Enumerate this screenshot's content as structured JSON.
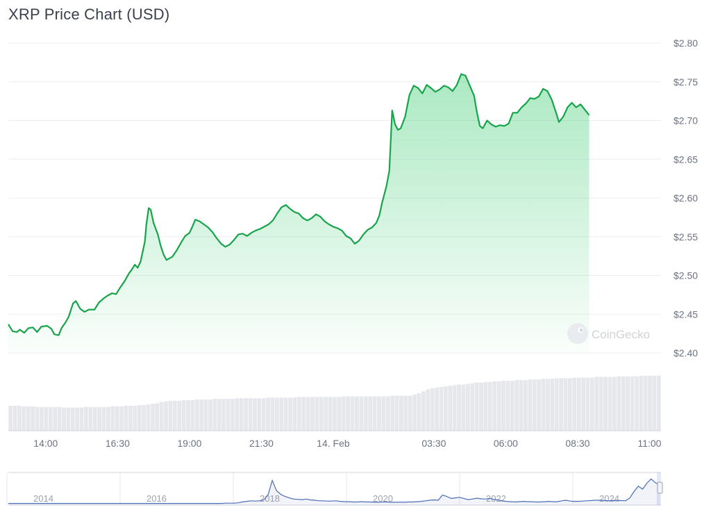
{
  "chart_data": {
    "type": "line",
    "title": "XRP Price Chart (USD)",
    "watermark": "CoinGecko",
    "colors": {
      "line": "#16a34a",
      "area_top": "#22c55e",
      "grid": "#eceef1",
      "volume": "#e5e7eb",
      "navigator_line": "#4b6cb7",
      "axis_text": "#6b7280"
    },
    "ylim": [
      2.38,
      2.82
    ],
    "y_ticks": [
      {
        "value": 2.8,
        "label": "$2.80"
      },
      {
        "value": 2.75,
        "label": "$2.75"
      },
      {
        "value": 2.7,
        "label": "$2.70"
      },
      {
        "value": 2.65,
        "label": "$2.65"
      },
      {
        "value": 2.6,
        "label": "$2.60"
      },
      {
        "value": 2.55,
        "label": "$2.55"
      },
      {
        "value": 2.5,
        "label": "$2.50"
      },
      {
        "value": 2.45,
        "label": "$2.45"
      },
      {
        "value": 2.4,
        "label": "$2.40"
      }
    ],
    "x_ticks": [
      {
        "label": "14:00",
        "pos": 2.0
      },
      {
        "label": "16:30",
        "pos": 4.5
      },
      {
        "label": "19:00",
        "pos": 7.0
      },
      {
        "label": "21:30",
        "pos": 9.5
      },
      {
        "label": "14. Feb",
        "pos": 12.0
      },
      {
        "label": "03:30",
        "pos": 15.5
      },
      {
        "label": "06:00",
        "pos": 18.0
      },
      {
        "label": "08:30",
        "pos": 20.5
      },
      {
        "label": "11:00",
        "pos": 23.0
      }
    ],
    "x_range": [
      0.7,
      23.4
    ],
    "series": [
      {
        "values": [
          [
            0.7,
            2.437
          ],
          [
            0.85,
            2.428
          ],
          [
            1.0,
            2.427
          ],
          [
            1.1,
            2.43
          ],
          [
            1.25,
            2.426
          ],
          [
            1.4,
            2.432
          ],
          [
            1.55,
            2.433
          ],
          [
            1.7,
            2.427
          ],
          [
            1.85,
            2.434
          ],
          [
            2.05,
            2.435
          ],
          [
            2.2,
            2.431
          ],
          [
            2.3,
            2.424
          ],
          [
            2.45,
            2.423
          ],
          [
            2.55,
            2.432
          ],
          [
            2.7,
            2.44
          ],
          [
            2.8,
            2.447
          ],
          [
            2.95,
            2.464
          ],
          [
            3.05,
            2.467
          ],
          [
            3.2,
            2.457
          ],
          [
            3.35,
            2.453
          ],
          [
            3.5,
            2.456
          ],
          [
            3.7,
            2.456
          ],
          [
            3.85,
            2.465
          ],
          [
            4.0,
            2.47
          ],
          [
            4.15,
            2.474
          ],
          [
            4.3,
            2.477
          ],
          [
            4.45,
            2.476
          ],
          [
            4.6,
            2.485
          ],
          [
            4.75,
            2.493
          ],
          [
            4.9,
            2.503
          ],
          [
            5.0,
            2.508
          ],
          [
            5.1,
            2.514
          ],
          [
            5.2,
            2.51
          ],
          [
            5.3,
            2.518
          ],
          [
            5.45,
            2.544
          ],
          [
            5.5,
            2.566
          ],
          [
            5.58,
            2.587
          ],
          [
            5.65,
            2.585
          ],
          [
            5.75,
            2.568
          ],
          [
            5.9,
            2.553
          ],
          [
            6.0,
            2.538
          ],
          [
            6.1,
            2.527
          ],
          [
            6.2,
            2.52
          ],
          [
            6.4,
            2.524
          ],
          [
            6.55,
            2.532
          ],
          [
            6.7,
            2.542
          ],
          [
            6.85,
            2.551
          ],
          [
            7.0,
            2.555
          ],
          [
            7.1,
            2.563
          ],
          [
            7.2,
            2.572
          ],
          [
            7.35,
            2.57
          ],
          [
            7.5,
            2.566
          ],
          [
            7.65,
            2.562
          ],
          [
            7.8,
            2.556
          ],
          [
            7.95,
            2.548
          ],
          [
            8.1,
            2.541
          ],
          [
            8.25,
            2.537
          ],
          [
            8.4,
            2.54
          ],
          [
            8.55,
            2.546
          ],
          [
            8.7,
            2.553
          ],
          [
            8.85,
            2.554
          ],
          [
            9.0,
            2.551
          ],
          [
            9.15,
            2.555
          ],
          [
            9.3,
            2.558
          ],
          [
            9.45,
            2.56
          ],
          [
            9.6,
            2.563
          ],
          [
            9.75,
            2.566
          ],
          [
            9.9,
            2.571
          ],
          [
            10.05,
            2.58
          ],
          [
            10.2,
            2.588
          ],
          [
            10.35,
            2.591
          ],
          [
            10.5,
            2.586
          ],
          [
            10.65,
            2.582
          ],
          [
            10.8,
            2.58
          ],
          [
            10.95,
            2.574
          ],
          [
            11.1,
            2.571
          ],
          [
            11.25,
            2.574
          ],
          [
            11.4,
            2.579
          ],
          [
            11.55,
            2.576
          ],
          [
            11.7,
            2.57
          ],
          [
            11.85,
            2.566
          ],
          [
            12.0,
            2.563
          ],
          [
            12.15,
            2.561
          ],
          [
            12.3,
            2.558
          ],
          [
            12.45,
            2.551
          ],
          [
            12.6,
            2.548
          ],
          [
            12.75,
            2.541
          ],
          [
            12.9,
            2.545
          ],
          [
            13.05,
            2.553
          ],
          [
            13.2,
            2.559
          ],
          [
            13.35,
            2.562
          ],
          [
            13.5,
            2.568
          ],
          [
            13.6,
            2.577
          ],
          [
            13.7,
            2.594
          ],
          [
            13.85,
            2.615
          ],
          [
            13.95,
            2.635
          ],
          [
            14.05,
            2.713
          ],
          [
            14.15,
            2.695
          ],
          [
            14.25,
            2.688
          ],
          [
            14.35,
            2.69
          ],
          [
            14.5,
            2.705
          ],
          [
            14.65,
            2.733
          ],
          [
            14.8,
            2.745
          ],
          [
            14.95,
            2.742
          ],
          [
            15.1,
            2.735
          ],
          [
            15.25,
            2.746
          ],
          [
            15.4,
            2.742
          ],
          [
            15.55,
            2.737
          ],
          [
            15.7,
            2.74
          ],
          [
            15.85,
            2.745
          ],
          [
            16.0,
            2.743
          ],
          [
            16.15,
            2.738
          ],
          [
            16.3,
            2.746
          ],
          [
            16.45,
            2.76
          ],
          [
            16.6,
            2.758
          ],
          [
            16.75,
            2.745
          ],
          [
            16.9,
            2.732
          ],
          [
            17.0,
            2.71
          ],
          [
            17.1,
            2.693
          ],
          [
            17.2,
            2.69
          ],
          [
            17.35,
            2.7
          ],
          [
            17.5,
            2.695
          ],
          [
            17.65,
            2.692
          ],
          [
            17.8,
            2.694
          ],
          [
            17.95,
            2.693
          ],
          [
            18.1,
            2.696
          ],
          [
            18.25,
            2.71
          ],
          [
            18.4,
            2.71
          ],
          [
            18.55,
            2.717
          ],
          [
            18.7,
            2.722
          ],
          [
            18.85,
            2.729
          ],
          [
            19.0,
            2.728
          ],
          [
            19.15,
            2.731
          ],
          [
            19.3,
            2.741
          ],
          [
            19.45,
            2.738
          ],
          [
            19.6,
            2.727
          ],
          [
            19.75,
            2.71
          ],
          [
            19.85,
            2.698
          ],
          [
            20.0,
            2.705
          ],
          [
            20.15,
            2.717
          ],
          [
            20.3,
            2.723
          ],
          [
            20.45,
            2.717
          ],
          [
            20.6,
            2.721
          ],
          [
            20.75,
            2.714
          ],
          [
            20.9,
            2.707
          ]
        ]
      }
    ],
    "volume": {
      "note_scale_max": 1.0,
      "values": [
        0.4,
        0.4,
        0.4,
        0.39,
        0.39,
        0.39,
        0.38,
        0.38,
        0.38,
        0.38,
        0.38,
        0.38,
        0.37,
        0.37,
        0.37,
        0.37,
        0.37,
        0.38,
        0.38,
        0.38,
        0.38,
        0.38,
        0.38,
        0.39,
        0.39,
        0.39,
        0.4,
        0.4,
        0.4,
        0.41,
        0.41,
        0.42,
        0.43,
        0.44,
        0.46,
        0.47,
        0.48,
        0.48,
        0.48,
        0.49,
        0.49,
        0.49,
        0.5,
        0.5,
        0.5,
        0.5,
        0.51,
        0.51,
        0.51,
        0.51,
        0.51,
        0.52,
        0.52,
        0.52,
        0.52,
        0.52,
        0.52,
        0.52,
        0.53,
        0.53,
        0.53,
        0.53,
        0.53,
        0.53,
        0.53,
        0.54,
        0.54,
        0.54,
        0.54,
        0.54,
        0.54,
        0.54,
        0.54,
        0.54,
        0.54,
        0.55,
        0.55,
        0.55,
        0.55,
        0.55,
        0.55,
        0.55,
        0.55,
        0.55,
        0.55,
        0.55,
        0.56,
        0.56,
        0.56,
        0.56,
        0.56,
        0.58,
        0.6,
        0.63,
        0.66,
        0.68,
        0.69,
        0.7,
        0.71,
        0.72,
        0.73,
        0.74,
        0.74,
        0.75,
        0.76,
        0.77,
        0.77,
        0.78,
        0.78,
        0.79,
        0.79,
        0.8,
        0.8,
        0.8,
        0.81,
        0.81,
        0.81,
        0.82,
        0.82,
        0.82,
        0.83,
        0.83,
        0.83,
        0.84,
        0.84,
        0.84,
        0.84,
        0.85,
        0.85,
        0.85,
        0.85,
        0.85,
        0.86,
        0.86,
        0.86,
        0.86,
        0.86,
        0.87,
        0.87,
        0.87,
        0.87,
        0.87,
        0.88,
        0.88,
        0.88,
        0.88,
        0.88
      ]
    },
    "navigator": {
      "x_ticks": [
        "2014",
        "2016",
        "2018",
        "2020",
        "2022",
        "2024"
      ],
      "values": [
        0.01,
        0.01,
        0.01,
        0.01,
        0.01,
        0.01,
        0.01,
        0.01,
        0.01,
        0.01,
        0.01,
        0.01,
        0.01,
        0.01,
        0.01,
        0.01,
        0.01,
        0.01,
        0.01,
        0.01,
        0.01,
        0.01,
        0.01,
        0.01,
        0.01,
        0.01,
        0.01,
        0.01,
        0.01,
        0.01,
        0.01,
        0.01,
        0.01,
        0.01,
        0.01,
        0.01,
        0.01,
        0.01,
        0.01,
        0.01,
        0.01,
        0.01,
        0.01,
        0.01,
        0.01,
        0.01,
        0.01,
        0.01,
        0.01,
        0.01,
        0.01,
        0.02,
        0.02,
        0.02,
        0.03,
        0.06,
        0.08,
        0.1,
        0.09,
        0.1,
        0.13,
        0.3,
        0.8,
        0.45,
        0.32,
        0.25,
        0.2,
        0.16,
        0.15,
        0.14,
        0.16,
        0.13,
        0.12,
        0.1,
        0.1,
        0.09,
        0.09,
        0.1,
        0.08,
        0.07,
        0.07,
        0.06,
        0.06,
        0.07,
        0.06,
        0.06,
        0.05,
        0.05,
        0.06,
        0.06,
        0.05,
        0.05,
        0.05,
        0.05,
        0.06,
        0.06,
        0.07,
        0.08,
        0.1,
        0.12,
        0.13,
        0.12,
        0.3,
        0.25,
        0.18,
        0.2,
        0.22,
        0.18,
        0.14,
        0.16,
        0.19,
        0.17,
        0.16,
        0.18,
        0.15,
        0.13,
        0.1,
        0.08,
        0.07,
        0.06,
        0.07,
        0.08,
        0.07,
        0.07,
        0.06,
        0.06,
        0.07,
        0.08,
        0.07,
        0.07,
        0.1,
        0.12,
        0.09,
        0.08,
        0.08,
        0.09,
        0.1,
        0.11,
        0.12,
        0.12,
        0.11,
        0.1,
        0.11,
        0.1,
        0.11,
        0.1,
        0.2,
        0.42,
        0.6,
        0.5,
        0.7,
        0.85,
        0.72,
        0.65
      ]
    }
  }
}
